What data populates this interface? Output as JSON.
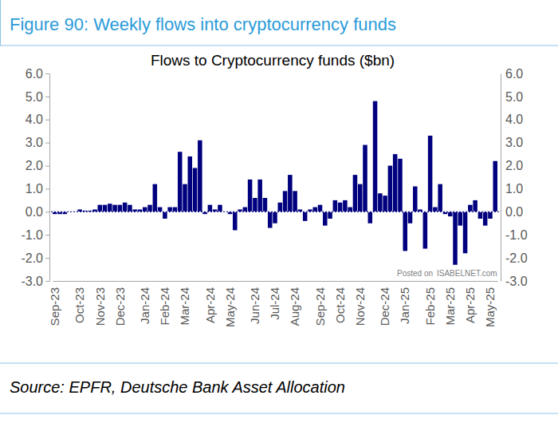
{
  "chart_data": {
    "type": "bar",
    "title": "Figure 90: Weekly flows into cryptocurrency funds",
    "subtitle": "Flows to Cryptocurrency funds ($bn)",
    "source": "Source: EPFR, Deutsche Bank Asset Allocation",
    "annotations": [
      "Posted on",
      "ISABELNET.com"
    ],
    "categories": [
      "Sep-23",
      null,
      null,
      null,
      null,
      "Oct-23",
      null,
      null,
      null,
      "Nov-23",
      null,
      null,
      null,
      "Dec-23",
      null,
      null,
      null,
      null,
      "Jan-24",
      null,
      null,
      null,
      "Feb-24",
      null,
      null,
      null,
      "Mar-24",
      null,
      null,
      null,
      null,
      "Apr-24",
      null,
      null,
      null,
      "May-24",
      null,
      null,
      null,
      null,
      "Jun-24",
      null,
      null,
      null,
      "Jul-24",
      null,
      null,
      null,
      "Aug-24",
      null,
      null,
      null,
      null,
      "Sep-24",
      null,
      null,
      null,
      "Oct-24",
      null,
      null,
      null,
      "Nov-24",
      null,
      null,
      null,
      null,
      "Dec-24",
      null,
      null,
      null,
      "Jan-25",
      null,
      null,
      null,
      null,
      "Feb-25",
      null,
      null,
      null,
      "Mar-25",
      null,
      null,
      null,
      "Apr-25",
      null,
      null,
      null,
      "May-25",
      null
    ],
    "values": [
      -0.1,
      -0.1,
      -0.1,
      0.0,
      0.0,
      0.1,
      0.05,
      0.05,
      0.1,
      0.3,
      0.3,
      0.35,
      0.3,
      0.3,
      0.4,
      0.3,
      0.1,
      0.1,
      0.2,
      0.3,
      1.2,
      0.2,
      -0.3,
      0.2,
      0.2,
      2.6,
      1.2,
      2.4,
      1.9,
      3.1,
      -0.1,
      0.3,
      0.1,
      0.3,
      0.0,
      -0.1,
      -0.8,
      0.1,
      0.2,
      1.4,
      0.6,
      1.4,
      0.6,
      -0.7,
      -0.5,
      0.4,
      0.9,
      1.6,
      0.9,
      0.1,
      -0.4,
      0.1,
      0.2,
      0.3,
      -0.6,
      -0.3,
      0.5,
      0.4,
      0.5,
      0.2,
      1.6,
      1.2,
      2.9,
      -0.5,
      4.8,
      0.8,
      0.7,
      2.0,
      2.5,
      2.3,
      -1.7,
      -0.5,
      1.1,
      0.1,
      -1.6,
      3.3,
      0.2,
      1.2,
      -0.1,
      -0.2,
      -2.3,
      -0.6,
      -1.8,
      0.3,
      0.5,
      -0.3,
      -0.6,
      -0.3,
      2.2
    ],
    "color": "#00007f",
    "ylim": [
      -3,
      6
    ],
    "yticks": [
      {
        "value": 6,
        "label": "6.0"
      },
      {
        "value": 5,
        "label": "5.0"
      },
      {
        "value": 4,
        "label": "4.0"
      },
      {
        "value": 3,
        "label": "3.0"
      },
      {
        "value": 2,
        "label": "2.0"
      },
      {
        "value": 1,
        "label": "1.0"
      },
      {
        "value": 0,
        "label": "0.0"
      },
      {
        "value": -1,
        "label": "-1.0"
      },
      {
        "value": -2,
        "label": "-2.0"
      },
      {
        "value": -3,
        "label": "-3.0"
      }
    ],
    "y2lim": [
      -3,
      6
    ],
    "y2ticks": [
      {
        "value": 6,
        "label": "6.0"
      },
      {
        "value": 5,
        "label": "5.0"
      },
      {
        "value": 4,
        "label": "4.0"
      },
      {
        "value": 3,
        "label": "3.0"
      },
      {
        "value": 2,
        "label": "2.0"
      },
      {
        "value": 1,
        "label": "1.0"
      },
      {
        "value": 0,
        "label": "0.0"
      },
      {
        "value": -1,
        "label": "-1.0"
      },
      {
        "value": -2,
        "label": "-2.0"
      },
      {
        "value": -3,
        "label": "-3.0"
      }
    ],
    "grid": false
  }
}
